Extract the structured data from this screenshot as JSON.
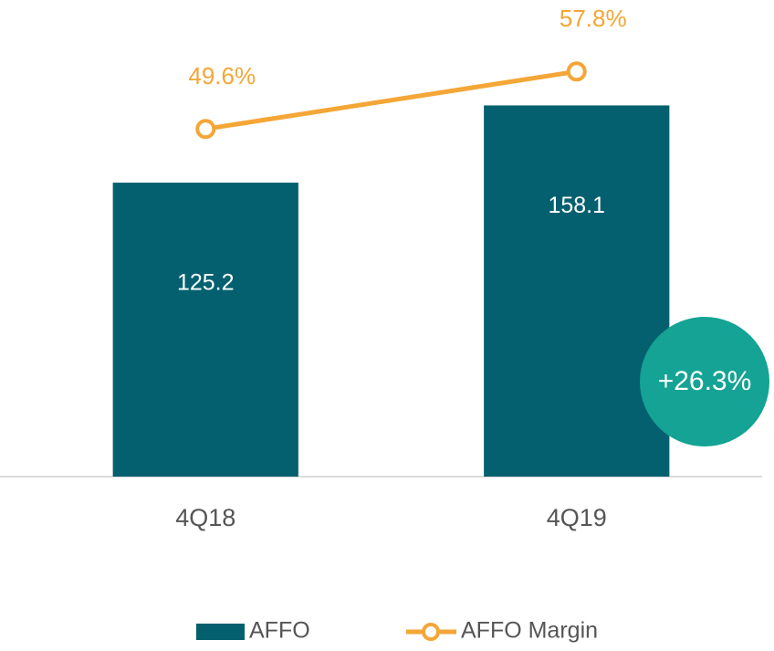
{
  "chart_data": {
    "type": "bar_line",
    "categories": [
      "4Q18",
      "4Q19"
    ],
    "series": [
      {
        "name": "AFFO",
        "type": "bar",
        "color": "#04606e",
        "values": [
          125.2,
          158.1
        ]
      },
      {
        "name": "AFFO Margin",
        "type": "line",
        "color": "#f4a636",
        "axis": "y2",
        "values": [
          49.6,
          57.8
        ],
        "value_labels": [
          "49.6%",
          "57.8%"
        ]
      }
    ],
    "ylim": [
      0,
      203
    ],
    "y2lim": [
      0,
      68
    ],
    "annotation": {
      "text": "+26.3%",
      "color": "#14a394"
    },
    "legend": "bottom"
  }
}
